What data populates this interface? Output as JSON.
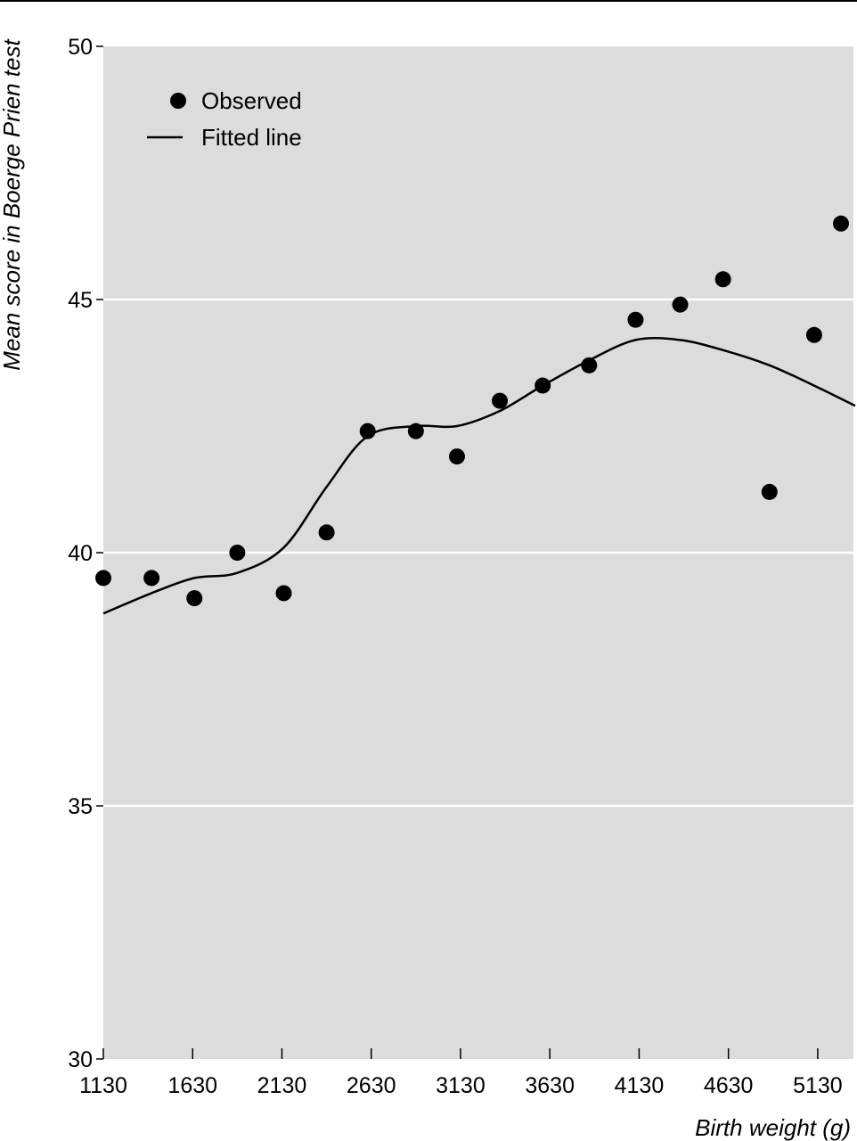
{
  "chart_data": {
    "type": "scatter",
    "xlabel": "Birth weight (g)",
    "ylabel": "Mean score in Boerge Prien test",
    "xlim": [
      1130,
      5330
    ],
    "ylim": [
      30,
      50
    ],
    "xticks": [
      1130,
      1630,
      2130,
      2630,
      3130,
      3630,
      4130,
      4630,
      5130
    ],
    "yticks": [
      30,
      35,
      40,
      45,
      50
    ],
    "grid": "horizontal",
    "legend_position": "top-left",
    "colors": {
      "background": "#dcdcdc",
      "grid": "#ffffff",
      "marks": "#000000"
    },
    "series": [
      {
        "name": "Observed",
        "kind": "points",
        "points": [
          {
            "x": 1130,
            "y": 39.5
          },
          {
            "x": 1400,
            "y": 39.5
          },
          {
            "x": 1640,
            "y": 39.1
          },
          {
            "x": 1880,
            "y": 40.0
          },
          {
            "x": 2140,
            "y": 39.2
          },
          {
            "x": 2380,
            "y": 40.4
          },
          {
            "x": 2610,
            "y": 42.4
          },
          {
            "x": 2880,
            "y": 42.4
          },
          {
            "x": 3110,
            "y": 41.9
          },
          {
            "x": 3350,
            "y": 43.0
          },
          {
            "x": 3590,
            "y": 43.3
          },
          {
            "x": 3850,
            "y": 43.7
          },
          {
            "x": 4110,
            "y": 44.6
          },
          {
            "x": 4360,
            "y": 44.9
          },
          {
            "x": 4600,
            "y": 45.4
          },
          {
            "x": 4860,
            "y": 41.2
          },
          {
            "x": 5110,
            "y": 44.3
          },
          {
            "x": 5340,
            "y": 46.5
          }
        ]
      },
      {
        "name": "Fitted line",
        "kind": "line",
        "points": [
          {
            "x": 1130,
            "y": 38.8
          },
          {
            "x": 1400,
            "y": 39.2
          },
          {
            "x": 1640,
            "y": 39.5
          },
          {
            "x": 1880,
            "y": 39.6
          },
          {
            "x": 2140,
            "y": 40.1
          },
          {
            "x": 2380,
            "y": 41.3
          },
          {
            "x": 2610,
            "y": 42.3
          },
          {
            "x": 2880,
            "y": 42.5
          },
          {
            "x": 3110,
            "y": 42.5
          },
          {
            "x": 3350,
            "y": 42.8
          },
          {
            "x": 3590,
            "y": 43.3
          },
          {
            "x": 3850,
            "y": 43.8
          },
          {
            "x": 4110,
            "y": 44.2
          },
          {
            "x": 4360,
            "y": 44.2
          },
          {
            "x": 4600,
            "y": 44.0
          },
          {
            "x": 4860,
            "y": 43.7
          },
          {
            "x": 5110,
            "y": 43.3
          },
          {
            "x": 5340,
            "y": 42.9
          }
        ]
      }
    ]
  }
}
